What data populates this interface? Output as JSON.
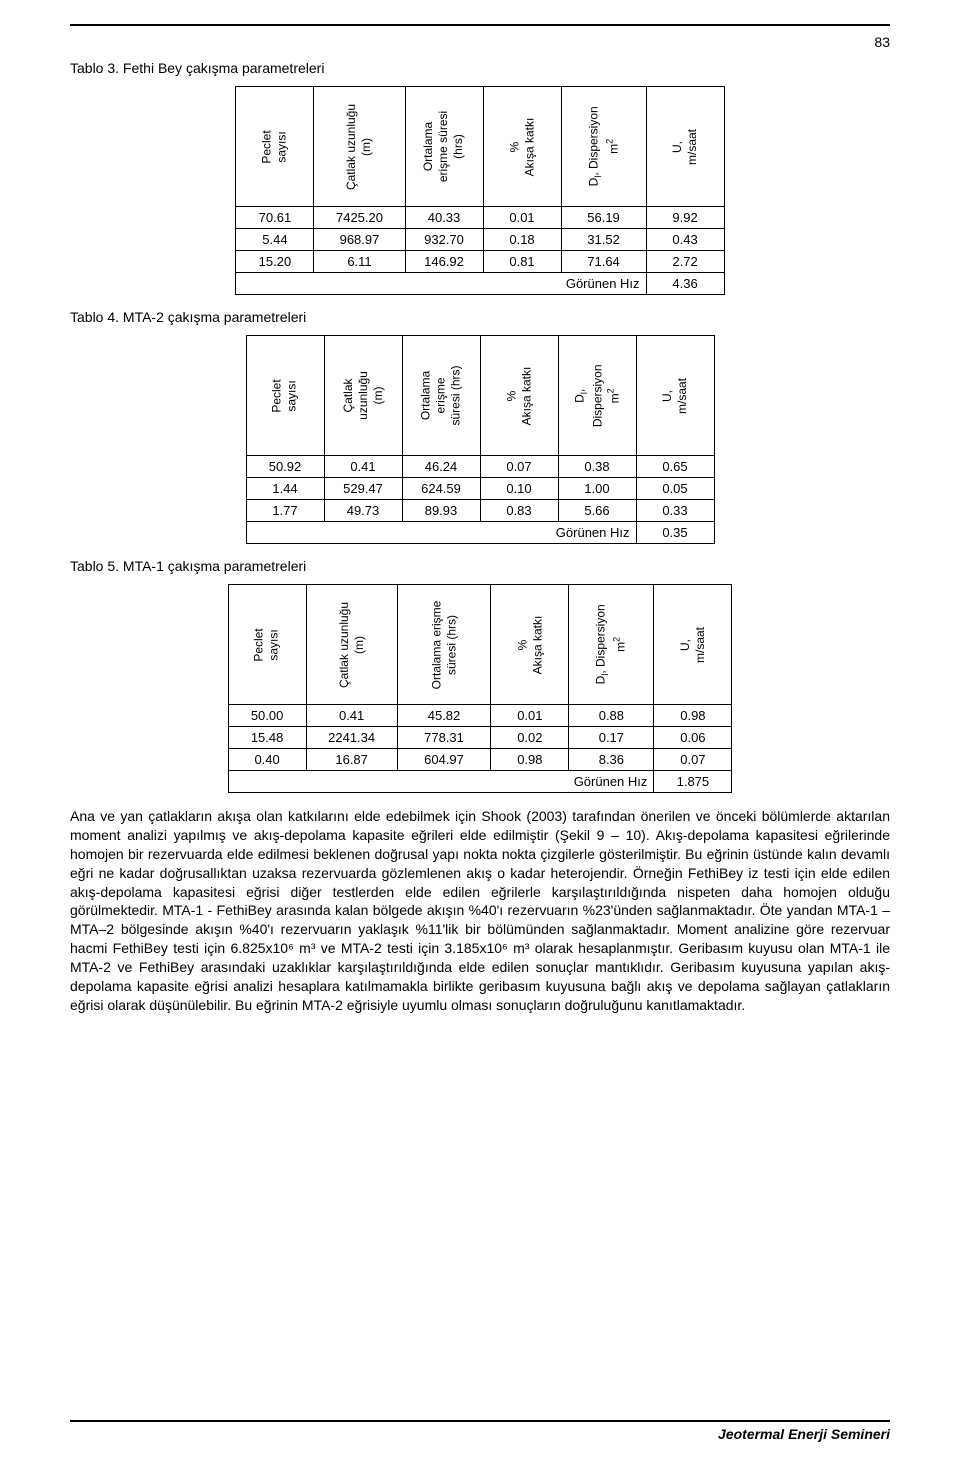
{
  "page_number": "83",
  "headers": {
    "peclet": "Peclet\nsayısı",
    "catlak1": "Çatlak uzunluğu\n(m)",
    "catlak2": "Çatlak\nuzunluğu\n(m)",
    "ortalama1": "Ortalama\nerişme süresi\n(hrs)",
    "ortalama2": "Ortalama\nerişme\nsüresi (hrs)",
    "ortalama3": "Ortalama erişme\nsüresi (hrs)",
    "akisa": "%\nAkışa katkı",
    "dispersiyon1": "Dₗ, Dispersiyon\nm²",
    "dispersiyon2": "Dₗ,\nDispersiyon\nm²",
    "u": "U,\nm/saat"
  },
  "gorunen_hiz_label": "Görünen Hız",
  "tables": {
    "t3": {
      "title": "Tablo 3. Fethi Bey çakışma parametreleri",
      "rows": [
        [
          "70.61",
          "7425.20",
          "40.33",
          "0.01",
          "56.19",
          "9.92"
        ],
        [
          "5.44",
          "968.97",
          "932.70",
          "0.18",
          "31.52",
          "0.43"
        ],
        [
          "15.20",
          "6.11",
          "146.92",
          "0.81",
          "71.64",
          "2.72"
        ]
      ],
      "gh": "4.36"
    },
    "t4": {
      "title": "Tablo 4. MTA-2 çakışma parametreleri",
      "rows": [
        [
          "50.92",
          "0.41",
          "46.24",
          "0.07",
          "0.38",
          "0.65"
        ],
        [
          "1.44",
          "529.47",
          "624.59",
          "0.10",
          "1.00",
          "0.05"
        ],
        [
          "1.77",
          "49.73",
          "89.93",
          "0.83",
          "5.66",
          "0.33"
        ]
      ],
      "gh": "0.35"
    },
    "t5": {
      "title": "Tablo 5. MTA-1 çakışma parametreleri",
      "rows": [
        [
          "50.00",
          "0.41",
          "45.82",
          "0.01",
          "0.88",
          "0.98"
        ],
        [
          "15.48",
          "2241.34",
          "778.31",
          "0.02",
          "0.17",
          "0.06"
        ],
        [
          "0.40",
          "16.87",
          "604.97",
          "0.98",
          "8.36",
          "0.07"
        ]
      ],
      "gh": "1.875"
    }
  },
  "body_paragraph": "Ana ve yan çatlakların akışa olan katkılarını elde edebilmek için Shook (2003) tarafından önerilen ve önceki bölümlerde aktarılan moment analizi yapılmış ve akış-depolama kapasite eğrileri elde edilmiştir (Şekil 9 – 10).  Akış-depolama kapasitesi eğrilerinde homojen bir rezervuarda elde edilmesi beklenen doğrusal yapı nokta nokta çizgilerle gösterilmiştir.  Bu eğrinin üstünde kalın devamlı eğri ne kadar doğrusallıktan uzaksa rezervuarda gözlemlenen akış o kadar heterojendir.  Örneğin FethiBey iz testi için elde edilen akış-depolama kapasitesi eğrisi diğer testlerden elde edilen eğrilerle karşılaştırıldığında nispeten daha homojen olduğu görülmektedir.  MTA-1 - FethiBey arasında kalan bölgede akışın %40'ı rezervuarın %23'ünden sağlanmaktadır.  Öte yandan MTA-1 – MTA–2 bölgesinde akışın %40'ı rezervuarın yaklaşık %11'lik bir bölümünden sağlanmaktadır.  Moment analizine göre rezervuar hacmi FethiBey testi için 6.825x10⁶ m³ ve MTA-2 testi için 3.185x10⁶ m³ olarak hesaplanmıştır.  Geribasım kuyusu olan MTA-1 ile MTA-2 ve FethiBey arasındaki uzaklıklar karşılaştırıldığında elde edilen sonuçlar mantıklıdır.  Geribasım kuyusuna yapılan akış-depolama kapasite eğrisi analizi hesaplara katılmamakla birlikte geribasım kuyusuna bağlı akış ve depolama sağlayan çatlakların eğrisi olarak düşünülebilir.  Bu eğrinin MTA-2 eğrisiyle uyumlu olması sonuçların doğruluğunu kanıtlamaktadır.",
  "footer_text": "Jeotermal Enerji Semineri"
}
